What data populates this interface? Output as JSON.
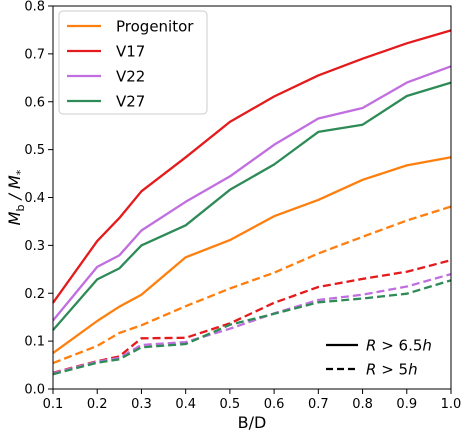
{
  "chart_data": {
    "type": "line",
    "title": "",
    "xlabel": "B/D",
    "ylabel_main": "M",
    "ylabel_sub_b": "b",
    "ylabel_slash": " / M",
    "ylabel_sub_star": "*",
    "xlim": [
      0.1,
      1.0
    ],
    "ylim": [
      0.0,
      0.8
    ],
    "x_ticks": [
      0.1,
      0.2,
      0.3,
      0.4,
      0.5,
      0.6,
      0.7,
      0.8,
      0.9,
      1.0
    ],
    "x_tick_labels": [
      "0.1",
      "0.2",
      "0.3",
      "0.4",
      "0.5",
      "0.6",
      "0.7",
      "0.8",
      "0.9",
      "1.0"
    ],
    "y_ticks": [
      0.0,
      0.1,
      0.2,
      0.3,
      0.4,
      0.5,
      0.6,
      0.7,
      0.8
    ],
    "y_tick_labels": [
      "0.0",
      "0.1",
      "0.2",
      "0.3",
      "0.4",
      "0.5",
      "0.6",
      "0.7",
      "0.8"
    ],
    "grid": false,
    "legend_position": "top-left",
    "x": [
      0.1,
      0.2,
      0.25,
      0.3,
      0.4,
      0.5,
      0.6,
      0.7,
      0.8,
      0.9,
      1.0
    ],
    "series": [
      {
        "name": "Progenitor",
        "color": "#ff7f0e",
        "style": "solid",
        "values": [
          0.075,
          0.142,
          0.172,
          0.197,
          0.275,
          0.311,
          0.361,
          0.395,
          0.437,
          0.467,
          0.484
        ]
      },
      {
        "name": "V17",
        "color": "#e41a1c",
        "style": "solid",
        "values": [
          0.18,
          0.309,
          0.357,
          0.413,
          0.484,
          0.558,
          0.611,
          0.655,
          0.69,
          0.722,
          0.749
        ]
      },
      {
        "name": "V22",
        "color": "#c06ee0",
        "style": "solid",
        "values": [
          0.143,
          0.255,
          0.279,
          0.331,
          0.391,
          0.444,
          0.51,
          0.565,
          0.587,
          0.64,
          0.674
        ]
      },
      {
        "name": "V27",
        "color": "#2e8b57",
        "style": "solid",
        "values": [
          0.123,
          0.229,
          0.252,
          0.3,
          0.342,
          0.416,
          0.469,
          0.537,
          0.552,
          0.612,
          0.64
        ]
      },
      {
        "color": "#ff7f0e",
        "style": "dashed",
        "values": [
          0.054,
          0.09,
          0.117,
          0.133,
          0.173,
          0.21,
          0.243,
          0.283,
          0.318,
          0.352,
          0.381
        ]
      },
      {
        "color": "#e41a1c",
        "style": "dashed",
        "values": [
          0.034,
          0.058,
          0.068,
          0.106,
          0.107,
          0.137,
          0.18,
          0.213,
          0.23,
          0.245,
          0.269
        ]
      },
      {
        "color": "#c06ee0",
        "style": "dashed",
        "values": [
          0.033,
          0.057,
          0.065,
          0.092,
          0.098,
          0.126,
          0.158,
          0.186,
          0.197,
          0.214,
          0.24
        ]
      },
      {
        "color": "#2e8b57",
        "style": "dashed",
        "values": [
          0.031,
          0.055,
          0.062,
          0.087,
          0.094,
          0.134,
          0.157,
          0.181,
          0.189,
          0.199,
          0.227
        ]
      }
    ],
    "legend": [
      {
        "label": "Progenitor",
        "color": "#ff7f0e"
      },
      {
        "label": "V17",
        "color": "#e41a1c"
      },
      {
        "label": "V22",
        "color": "#c06ee0"
      },
      {
        "label": "V27",
        "color": "#2e8b57"
      }
    ],
    "annotations": [
      {
        "style": "solid",
        "var": "R",
        "relation": " > 6.5",
        "suffix": "h"
      },
      {
        "style": "dashed",
        "var": "R",
        "relation": " > 5",
        "suffix": "h"
      }
    ]
  }
}
